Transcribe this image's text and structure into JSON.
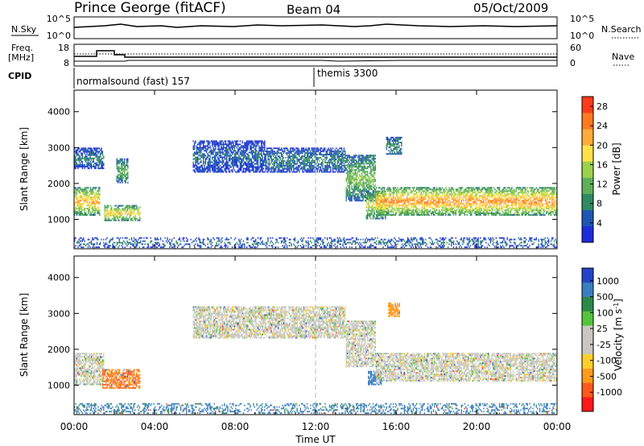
{
  "header": {
    "station": "Prince George (fitACF)",
    "beam": "Beam 04",
    "date": "05/Oct/2009"
  },
  "summary_panels": {
    "nsky_label": "N.Sky",
    "nsky_ticks": [
      "10^5",
      "10^0"
    ],
    "nsearch_label": "N.Search",
    "nsearch_ticks": [
      "10^5",
      "10^0"
    ],
    "freq_label_1": "Freq.",
    "freq_label_2": "[MHz]",
    "freq_ticks": [
      "18",
      "8"
    ],
    "nave_label": "Nave",
    "nave_ticks": [
      "60",
      "0"
    ],
    "cpid_label": "CPID",
    "cpid_segments": [
      {
        "text": "normalsound (fast) 157",
        "start_hour": 0
      },
      {
        "text": "themis 3300",
        "start_hour": 12
      }
    ]
  },
  "x_axis": {
    "label": "Time UT",
    "ticks": [
      "00:00",
      "04:00",
      "08:00",
      "12:00",
      "16:00",
      "20:00",
      "00:00"
    ],
    "range_hours": [
      0,
      24
    ]
  },
  "colors": {
    "power_scale": [
      "#1e2bdc",
      "#1e56b4",
      "#2e8a5f",
      "#5fae5a",
      "#9bd14a",
      "#ffe24a",
      "#ffab3a",
      "#ff7a20",
      "#ff3b1a"
    ],
    "velocity_scale": [
      "#2344c8",
      "#3a7ec0",
      "#2b8a4a",
      "#54c43c",
      "#c8c8c0",
      "#c8c8c0",
      "#ffd02a",
      "#ff9a1c",
      "#ff5a1a",
      "#ff1a1a"
    ],
    "ground_scatter": "#c8c8c0",
    "noon_line": "#bbbbbb"
  },
  "chart_data": [
    {
      "type": "heatmap",
      "name": "power-panel",
      "xlabel": "",
      "ylabel": "Slant Range [km]",
      "xlim": [
        0,
        24
      ],
      "ylim": [
        180,
        4600
      ],
      "yticks": [
        "1000",
        "2000",
        "3000",
        "4000"
      ],
      "colorbar_label": "Power [dB]",
      "colorbar_ticks": [
        "4",
        "8",
        "12",
        "16",
        "20",
        "24",
        "28"
      ],
      "colorbar_range": [
        0,
        30
      ],
      "regions": [
        {
          "t0": 0.0,
          "t1": 1.3,
          "r0": 1100,
          "r1": 1900,
          "peak": 22
        },
        {
          "t0": 0.0,
          "t1": 1.5,
          "r0": 2400,
          "r1": 3000,
          "peak": 8
        },
        {
          "t0": 1.5,
          "t1": 3.3,
          "r0": 950,
          "r1": 1400,
          "peak": 20
        },
        {
          "t0": 2.1,
          "t1": 2.7,
          "r0": 2000,
          "r1": 2700,
          "peak": 12
        },
        {
          "t0": 5.9,
          "t1": 9.5,
          "r0": 2300,
          "r1": 3200,
          "peak": 6
        },
        {
          "t0": 9.5,
          "t1": 13.5,
          "r0": 2300,
          "r1": 3000,
          "peak": 8
        },
        {
          "t0": 13.5,
          "t1": 15.0,
          "r0": 1500,
          "r1": 2800,
          "peak": 14
        },
        {
          "t0": 14.5,
          "t1": 15.5,
          "r0": 1000,
          "r1": 1800,
          "peak": 18
        },
        {
          "t0": 15.0,
          "t1": 24.0,
          "r0": 1100,
          "r1": 1900,
          "peak": 24
        },
        {
          "t0": 15.5,
          "t1": 16.3,
          "r0": 2800,
          "r1": 3300,
          "peak": 10
        },
        {
          "t0": 0.0,
          "t1": 24.0,
          "r0": 200,
          "r1": 500,
          "peak": 7
        }
      ]
    },
    {
      "type": "heatmap",
      "name": "velocity-panel",
      "xlabel": "Time UT",
      "ylabel": "Slant Range [km]",
      "xlim": [
        0,
        24
      ],
      "ylim": [
        180,
        4600
      ],
      "yticks": [
        "1000",
        "2000",
        "3000",
        "4000"
      ],
      "colorbar_label": "Velocity [m s^-1]",
      "colorbar_ticks": [
        "1000",
        "500",
        "100",
        "25",
        "-25",
        "-100",
        "-500",
        "-1000"
      ],
      "regions": [
        {
          "t0": 0.0,
          "t1": 1.5,
          "r0": 1000,
          "r1": 1900,
          "v": 0
        },
        {
          "t0": 1.4,
          "t1": 3.3,
          "r0": 900,
          "r1": 1450,
          "v": -300
        },
        {
          "t0": 5.9,
          "t1": 13.5,
          "r0": 2300,
          "r1": 3200,
          "v": 0
        },
        {
          "t0": 13.5,
          "t1": 15.0,
          "r0": 1500,
          "r1": 2800,
          "v": 0
        },
        {
          "t0": 14.6,
          "t1": 15.3,
          "r0": 1000,
          "r1": 1400,
          "v": 150
        },
        {
          "t0": 15.0,
          "t1": 24.0,
          "r0": 1100,
          "r1": 1900,
          "v": 0
        },
        {
          "t0": 15.6,
          "t1": 16.2,
          "r0": 2900,
          "r1": 3300,
          "v": -200
        },
        {
          "t0": 0.0,
          "t1": 24.0,
          "r0": 200,
          "r1": 500,
          "v": 120
        }
      ]
    }
  ]
}
